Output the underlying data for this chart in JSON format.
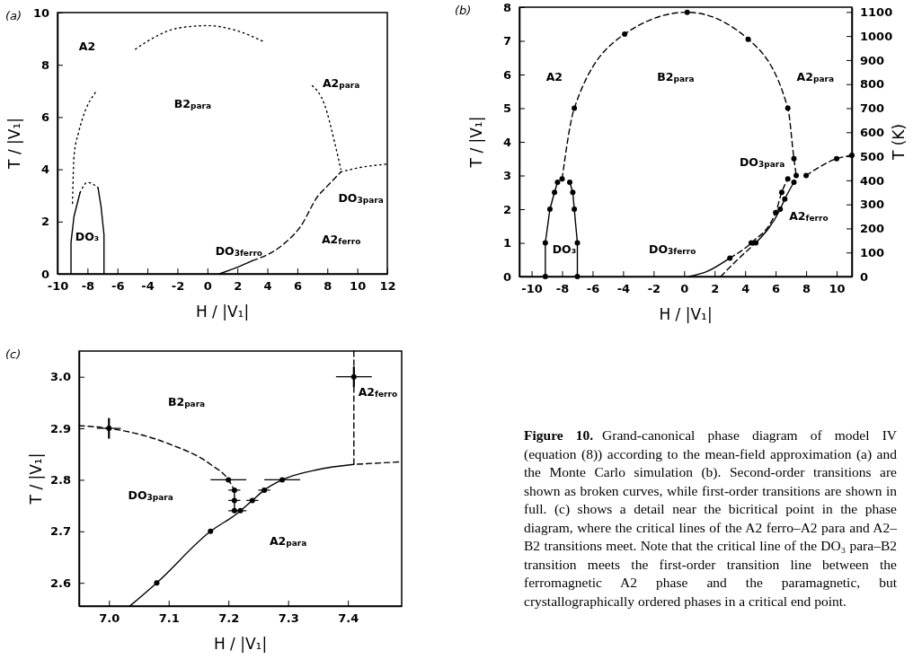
{
  "chart_data": [
    {
      "type": "line",
      "title": "(a)",
      "xlabel": "H / |V₁|",
      "ylabel": "T / |V₁|",
      "xlim": [
        -10,
        12
      ],
      "ylim": [
        0,
        10
      ],
      "xticks": [
        -10,
        -8,
        -6,
        -4,
        -2,
        0,
        2,
        4,
        6,
        8,
        10,
        12
      ],
      "yticks": [
        0,
        2,
        4,
        6,
        8,
        10
      ],
      "series": [
        {
          "type": "line",
          "color": "#000000",
          "line_style": "dotted",
          "marker": "none",
          "x": [
            -9.0,
            -8.9,
            -8.6,
            -8.3,
            -7.4
          ],
          "values": [
            2.7,
            4.5,
            5.4,
            6.0,
            7.0
          ]
        },
        {
          "type": "line",
          "color": "#000000",
          "line_style": "dotted",
          "marker": "none",
          "x": [
            -4.8,
            -4,
            -2,
            0,
            2,
            3.7
          ],
          "values": [
            8.6,
            8.9,
            9.4,
            9.5,
            9.3,
            8.9
          ]
        },
        {
          "type": "line",
          "color": "#000000",
          "line_style": "dotted",
          "marker": "none",
          "x": [
            7.0,
            7.8,
            8.5,
            8.9
          ],
          "values": [
            7.2,
            6.5,
            5.0,
            4.0
          ]
        },
        {
          "type": "line",
          "color": "#000000",
          "line_style": "dotted",
          "marker": "none",
          "x": [
            8.9,
            10,
            12
          ],
          "values": [
            3.9,
            4.05,
            4.2
          ]
        },
        {
          "type": "line",
          "color": "#000000",
          "line_style": "solid",
          "marker": "none",
          "x": [
            -9.1,
            -9.1,
            -8.9,
            -8.5
          ],
          "values": [
            0,
            1.2,
            2.2,
            3.1
          ]
        },
        {
          "type": "line",
          "color": "#000000",
          "line_style": "dotted",
          "marker": "none",
          "x": [
            -8.5,
            -8,
            -7.3
          ],
          "values": [
            3.1,
            3.5,
            3.3
          ]
        },
        {
          "type": "line",
          "color": "#000000",
          "line_style": "solid",
          "marker": "none",
          "x": [
            -7.3,
            -7.1,
            -6.9,
            -6.9
          ],
          "values": [
            3.3,
            2.6,
            1.5,
            0
          ]
        },
        {
          "type": "line",
          "color": "#000000",
          "line_style": "solid",
          "marker": "none",
          "x": [
            0.8,
            2,
            3
          ],
          "values": [
            0,
            0.25,
            0.5
          ]
        },
        {
          "type": "line",
          "color": "#000000",
          "line_style": "dashed",
          "marker": "none",
          "x": [
            3,
            5,
            6.2,
            7.4,
            7.9,
            8.9
          ],
          "values": [
            0.5,
            1.1,
            1.8,
            3.0,
            3.3,
            3.9
          ]
        }
      ],
      "annotations": [
        "A2",
        "B2$_{para}$",
        "A2$_{para}$",
        "DO$_{3para}$",
        "A2$_{ferro}$",
        "DO$_{3ferro}$",
        "DO₃"
      ]
    },
    {
      "type": "line",
      "title": "(b)",
      "xlabel": "H / |V₁|",
      "ylabel": "T / |V₁|",
      "y2label": "T (K)",
      "xlim": [
        -10.8,
        11
      ],
      "ylim": [
        0,
        8
      ],
      "y2lim": [
        0,
        1120
      ],
      "xticks": [
        -10,
        -8,
        -6,
        -4,
        -2,
        0,
        2,
        4,
        6,
        8,
        10
      ],
      "yticks": [
        0,
        1,
        2,
        3,
        4,
        5,
        6,
        7,
        8
      ],
      "y2ticks": [
        0,
        100,
        200,
        300,
        400,
        500,
        600,
        700,
        800,
        900,
        1000,
        1100
      ],
      "series": [
        {
          "type": "line",
          "color": "#000000",
          "line_style": "dashed",
          "marker": "circle",
          "x": [
            -8.0,
            -7.2,
            -3.9,
            0.2,
            4.2,
            6.8,
            7.2,
            7.35
          ],
          "values": [
            2.9,
            5.0,
            7.2,
            7.85,
            7.05,
            5.0,
            3.5,
            3.0
          ]
        },
        {
          "type": "line",
          "color": "#000000",
          "line_style": "solid",
          "marker": "circle",
          "x": [
            -9.1,
            -9.1,
            -8.8,
            -8.5,
            -8.3
          ],
          "values": [
            0,
            1.0,
            2.0,
            2.5,
            2.8
          ]
        },
        {
          "type": "line",
          "color": "#000000",
          "line_style": "solid",
          "marker": "circle",
          "x": [
            -7.5,
            -7.3,
            -7.2,
            -7.0,
            -7.0
          ],
          "values": [
            2.8,
            2.5,
            2.0,
            1.0,
            0
          ]
        },
        {
          "type": "line",
          "color": "#000000",
          "line_style": "solid",
          "marker": "none",
          "x": [
            0.3,
            1.5,
            3
          ],
          "values": [
            0,
            0.15,
            0.55
          ]
        },
        {
          "type": "line",
          "color": "#000000",
          "line_style": "dashed",
          "marker": "circle",
          "x": [
            3,
            4.4,
            6.0,
            6.4,
            6.8
          ],
          "values": [
            0.55,
            1.0,
            1.9,
            2.5,
            2.9
          ]
        },
        {
          "type": "line",
          "color": "#000000",
          "line_style": "dashed",
          "marker": "none",
          "x": [
            2.4,
            3.5,
            4.7
          ],
          "values": [
            0,
            0.5,
            1.0
          ]
        },
        {
          "type": "line",
          "color": "#000000",
          "line_style": "solid",
          "marker": "circle",
          "x": [
            4.7,
            6.3,
            6.6,
            7.2
          ],
          "values": [
            1.0,
            2.0,
            2.3,
            2.8
          ]
        },
        {
          "type": "line",
          "color": "#000000",
          "line_style": "dashed",
          "marker": "circle",
          "x": [
            8,
            10,
            11
          ],
          "values": [
            3.0,
            3.5,
            3.6
          ]
        }
      ],
      "annotations": [
        "A2",
        "B2$_{para}$",
        "A2$_{para}$",
        "DO$_{3para}$",
        "A2$_{ferro}$",
        "DO$_{3ferro}$",
        "DO₃"
      ]
    },
    {
      "type": "line",
      "title": "(c)",
      "xlabel": "H / |V₁|",
      "ylabel": "T / |V₁|",
      "xlim": [
        6.95,
        7.49
      ],
      "ylim": [
        2.555,
        3.05
      ],
      "xticks": [
        {
          "value": 7.0,
          "label": "7.0"
        },
        7.1,
        7.2,
        7.3,
        7.4
      ],
      "yticks": [
        2.6,
        2.7,
        2.8,
        2.9,
        {
          "value": 3.0,
          "label": "3.0"
        }
      ],
      "series": [
        {
          "type": "line",
          "color": "#000000",
          "line_style": "dashed",
          "marker": "none",
          "x": [
            6.95,
            7.0,
            7.1,
            7.17,
            7.2,
            7.21
          ],
          "values": [
            2.905,
            2.9,
            2.87,
            2.83,
            2.8,
            2.78
          ]
        },
        {
          "type": "line",
          "color": "#000000",
          "line_style": "solid",
          "marker": "none",
          "x": [
            7.21,
            7.21
          ],
          "values": [
            2.78,
            2.74
          ]
        },
        {
          "type": "line",
          "color": "#000000",
          "line_style": "solid",
          "marker": "none",
          "x": [
            7.035,
            7.08,
            7.17,
            7.215,
            7.24,
            7.26,
            7.29,
            7.35,
            7.41
          ],
          "values": [
            2.555,
            2.6,
            2.7,
            2.735,
            2.76,
            2.78,
            2.8,
            2.82,
            2.83
          ]
        },
        {
          "type": "line",
          "color": "#000000",
          "line_style": "dashed",
          "marker": "none",
          "x": [
            7.41,
            7.41,
            7.49
          ],
          "values": [
            3.05,
            2.83,
            2.835
          ]
        },
        {
          "type": "scatter",
          "color": "#000000",
          "marker": "circle",
          "x": [
            7.0,
            7.2,
            7.21,
            7.21,
            7.21,
            7.22,
            7.24,
            7.26,
            7.29,
            7.17,
            7.08,
            7.41
          ],
          "values": [
            2.9,
            2.8,
            2.78,
            2.76,
            2.74,
            2.74,
            2.76,
            2.78,
            2.8,
            2.7,
            2.6,
            3.0
          ],
          "errors": [
            0.02,
            null,
            null,
            null,
            null,
            null,
            null,
            null,
            null,
            null,
            null,
            0.02
          ],
          "xerrors": [
            0.02,
            0.03,
            0.01,
            0.01,
            0.01,
            0.01,
            0.01,
            0.01,
            0.03,
            null,
            null,
            0.03
          ]
        }
      ],
      "annotations": [
        "B2$_{para}$",
        "DO$_{3para}$",
        "A2$_{para}$",
        "A2$_{ferro}$"
      ]
    },
    {
      "type": "other",
      "title": "Figure 10.",
      "annotations": [
        "Grand-canonical phase diagram of model IV (equation (8)) according to the mean-field approximation (a) and the Monte Carlo simulation (b). Second-order transitions are shown as broken curves, while first-order transitions are shown in full. (c) shows a detail near the bicritical point in the phase diagram, where the critical lines of the A2 ferro–A2 para and A2–B2 transitions meet. Note that the critical line of the DO₃ para–B2 transition meets the first-order transition line between the ferromagnetic A2 phase and the paramagnetic, but crystallographically ordered phases in a critical end point."
      ]
    }
  ]
}
